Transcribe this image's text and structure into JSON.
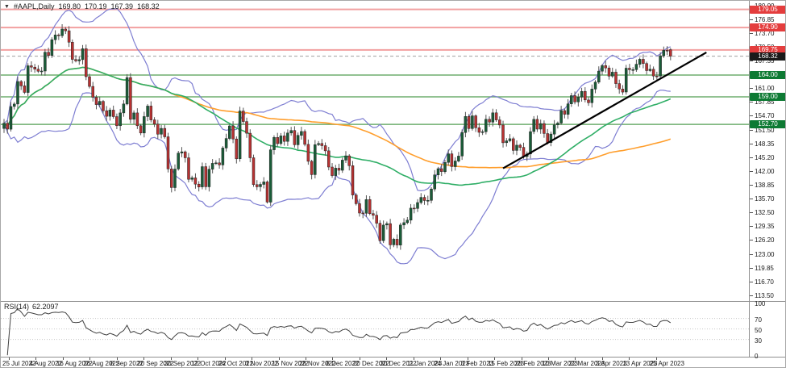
{
  "window": {
    "collapse_icon": "triangle-down",
    "symbol_title": "#AAPL,Daily",
    "ohlc_text": {
      "open": "169.80",
      "high": "170.19",
      "low": "167.39",
      "close": "168.32"
    }
  },
  "colors": {
    "bull_candle": "#1a5c38",
    "bear_candle": "#b83232",
    "candle_outline": "#222222",
    "wick": "#555555",
    "bollinger": "#7e7ed2",
    "ma_fast_green": "#2fae66",
    "ma_slow_orange": "#ff9e2c",
    "resistance_line": "#f2a0a0",
    "support_line": "#6fae6f",
    "current_price_line": "#a0a0a0",
    "trendline": "#000000",
    "badge_resistance": "#e43d3d",
    "badge_support": "#0d7a33",
    "badge_current": "#1a1a1a",
    "rsi_line": "#404040",
    "rsi_level_dotted": "#c8c8c8",
    "frame": "#909090"
  },
  "chart_data": {
    "type": "candlestick",
    "symbol": "#AAPL",
    "timeframe": "Daily",
    "title": "#AAPL,Daily",
    "last_bar": {
      "open": 169.8,
      "high": 170.19,
      "low": 167.39,
      "close": 168.32
    },
    "x_labels": [
      "25 Jul 2022",
      "4 Aug 2022",
      "16 Aug 2022",
      "26 Aug 2022",
      "8 Sep 2022",
      "20 Sep 2022",
      "30 Sep 2022",
      "12 Oct 2022",
      "24 Oct 2022",
      "3 Nov 2022",
      "15 Nov 2022",
      "28 Nov 2022",
      "8 Dec 2022",
      "20 Dec 2022",
      "30 Dec 2022",
      "11 Jan 2023",
      "24 Jan 2023",
      "3 Feb 2023",
      "15 Feb 2023",
      "28 Feb 2023",
      "10 Mar 2023",
      "22 Mar 2023",
      "3 Apr 2023",
      "13 Apr 2023",
      "25 Apr 2023"
    ],
    "price_axis_ticks": [
      180.0,
      176.85,
      173.7,
      170.5,
      167.35,
      161.0,
      157.85,
      154.7,
      151.5,
      148.35,
      145.2,
      142.0,
      138.85,
      135.7,
      132.5,
      129.35,
      126.2,
      123.0,
      119.85,
      116.7,
      113.5
    ],
    "levels": {
      "resistance": [
        179.05,
        174.9,
        169.75
      ],
      "support": [
        164.0,
        159.0,
        152.7
      ],
      "current_price": 168.32
    },
    "trendline": {
      "from": {
        "index": 146,
        "price": 142.6
      },
      "to": {
        "index": 205.5,
        "price": 169.2
      }
    },
    "indicators": {
      "bollinger": {
        "period": 20,
        "deviation": 2
      },
      "ma_green_period": 50,
      "ma_orange_period": 100
    },
    "rsi": {
      "label": "RSI(14)",
      "period": 14,
      "value_text": "62.2097",
      "levels_dotted": [
        70,
        50,
        30
      ],
      "axis_ticks": [
        100,
        70,
        50,
        30,
        0
      ]
    },
    "closes": [
      152.95,
      151.6,
      156.79,
      157.35,
      162.51,
      161.51,
      160.01,
      166.13,
      165.81,
      165.35,
      164.87,
      164.92,
      169.24,
      168.49,
      172.1,
      173.19,
      173.03,
      174.55,
      174.15,
      171.52,
      167.57,
      167.23,
      167.53,
      170.03,
      163.62,
      161.38,
      158.91,
      157.22,
      157.96,
      155.81,
      154.53,
      155.96,
      154.46,
      152.37,
      155.31,
      157.37,
      163.43,
      153.84,
      155.31,
      152.37,
      150.7,
      154.48,
      156.9,
      153.72,
      152.74,
      150.43,
      151.76,
      149.84,
      142.48,
      138.2,
      142.45,
      146.1,
      146.4,
      145.03,
      140.09,
      140.42,
      138.98,
      138.34,
      142.99,
      138.38,
      142.41,
      143.75,
      143.86,
      143.39,
      147.27,
      149.45,
      152.34,
      149.35,
      144.8,
      155.74,
      153.34,
      150.65,
      145.03,
      138.88,
      138.38,
      138.92,
      139.5,
      134.87,
      146.87,
      149.7,
      148.28,
      150.04,
      148.79,
      150.72,
      151.29,
      148.01,
      150.18,
      151.07,
      148.11,
      144.22,
      141.17,
      148.03,
      148.31,
      147.81,
      146.63,
      142.91,
      140.94,
      142.65,
      142.16,
      144.49,
      145.47,
      143.21,
      136.5,
      134.51,
      132.37,
      132.3,
      135.45,
      132.23,
      131.86,
      130.03,
      126.04,
      129.61,
      129.93,
      125.07,
      126.36,
      125.02,
      129.62,
      130.15,
      130.73,
      133.49,
      133.41,
      134.76,
      135.94,
      135.21,
      135.27,
      137.87,
      141.11,
      142.53,
      141.86,
      143.96,
      145.93,
      143.0,
      144.29,
      145.43,
      150.82,
      154.5,
      151.73,
      154.65,
      151.92,
      150.87,
      151.01,
      153.85,
      153.2,
      155.33,
      153.71,
      152.55,
      148.48,
      148.91,
      149.4,
      146.71,
      147.92,
      147.41,
      145.31,
      145.91,
      151.03,
      153.83,
      151.6,
      152.87,
      150.59,
      148.5,
      150.47,
      152.59,
      152.99,
      155.85,
      155.0,
      157.4,
      159.28,
      157.83,
      158.93,
      160.25,
      158.28,
      157.65,
      160.77,
      162.36,
      164.9,
      166.17,
      165.63,
      163.76,
      164.66,
      162.03,
      160.8,
      160.1,
      165.56,
      165.21,
      165.23,
      166.47,
      167.63,
      166.65,
      165.02,
      165.33,
      163.77,
      163.76,
      168.41,
      169.68,
      169.59,
      168.32
    ]
  }
}
